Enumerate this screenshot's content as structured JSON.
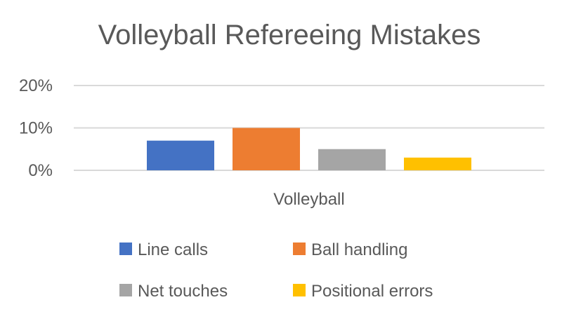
{
  "chart_data": {
    "type": "bar",
    "title": "Volleyball Refereeing Mistakes",
    "categories": [
      "Volleyball"
    ],
    "series": [
      {
        "name": "Line calls",
        "values": [
          0.07
        ],
        "color": "#4472c4"
      },
      {
        "name": "Ball handling",
        "values": [
          0.1
        ],
        "color": "#ed7d31"
      },
      {
        "name": "Net touches",
        "values": [
          0.05
        ],
        "color": "#a5a5a5"
      },
      {
        "name": "Positional errors",
        "values": [
          0.03
        ],
        "color": "#ffc000"
      }
    ],
    "ylim": [
      0,
      0.2
    ],
    "yticks": [
      "0%",
      "10%",
      "20%"
    ],
    "grid": true,
    "legend": "bottom",
    "xlabel": "",
    "ylabel": ""
  }
}
